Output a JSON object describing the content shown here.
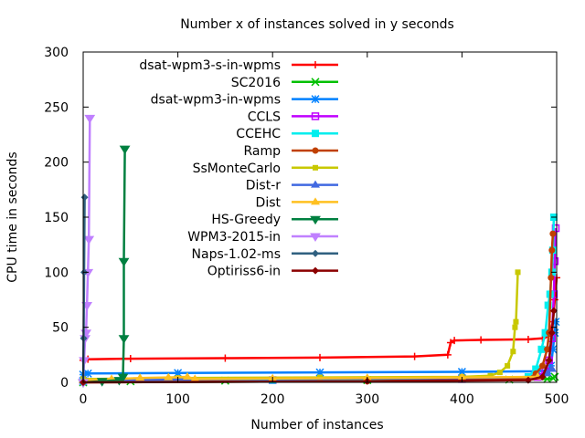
{
  "chart_data": {
    "type": "line",
    "title": "Number x of instances solved in y seconds",
    "xlabel": "Number of instances",
    "ylabel": "CPU time in seconds",
    "xlim": [
      0,
      500
    ],
    "ylim": [
      0,
      300
    ],
    "xticks": [
      "0",
      "100",
      "200",
      "300",
      "400",
      "500"
    ],
    "yticks": [
      "0",
      "50",
      "100",
      "150",
      "200",
      "250",
      "300"
    ],
    "xtick_values": [
      0,
      100,
      200,
      300,
      400,
      500
    ],
    "ytick_values": [
      0,
      50,
      100,
      150,
      200,
      250,
      300
    ],
    "grid": false,
    "legend_position": "top-left",
    "series": [
      {
        "name": "dsat-wpm3-s-in-wpms",
        "color": "#ff0000",
        "marker": "plus",
        "points": [
          [
            0,
            20
          ],
          [
            5,
            21
          ],
          [
            50,
            21.5
          ],
          [
            150,
            22
          ],
          [
            250,
            22.5
          ],
          [
            350,
            23.5
          ],
          [
            385,
            25
          ],
          [
            388,
            36
          ],
          [
            392,
            38
          ],
          [
            420,
            38.5
          ],
          [
            470,
            39
          ],
          [
            485,
            40
          ],
          [
            492,
            42
          ],
          [
            496,
            55
          ],
          [
            498,
            75
          ],
          [
            500,
            95
          ]
        ]
      },
      {
        "name": "SC2016",
        "color": "#00c000",
        "marker": "cross",
        "points": [
          [
            0,
            0
          ],
          [
            50,
            1
          ],
          [
            150,
            1.5
          ],
          [
            300,
            2
          ],
          [
            450,
            2.5
          ],
          [
            490,
            3
          ],
          [
            496,
            4
          ],
          [
            498,
            5
          ]
        ]
      },
      {
        "name": "dsat-wpm3-in-wpms",
        "color": "#0080ff",
        "marker": "star",
        "points": [
          [
            0,
            7
          ],
          [
            5,
            8
          ],
          [
            100,
            8.5
          ],
          [
            250,
            9
          ],
          [
            400,
            9.5
          ],
          [
            480,
            10
          ],
          [
            490,
            11
          ],
          [
            494,
            15
          ],
          [
            496,
            30
          ],
          [
            498,
            45
          ],
          [
            499,
            55
          ]
        ]
      },
      {
        "name": "CCLS",
        "color": "#c000ff",
        "marker": "box",
        "points": [
          [
            0,
            1
          ],
          [
            200,
            2
          ],
          [
            400,
            3
          ],
          [
            480,
            5
          ],
          [
            488,
            10
          ],
          [
            492,
            20
          ],
          [
            495,
            40
          ],
          [
            497,
            80
          ],
          [
            498,
            110
          ],
          [
            499,
            140
          ]
        ]
      },
      {
        "name": "CCEHC",
        "color": "#00eeee",
        "marker": "filled-box",
        "points": [
          [
            0,
            1
          ],
          [
            200,
            2
          ],
          [
            400,
            3
          ],
          [
            470,
            5
          ],
          [
            478,
            12
          ],
          [
            484,
            30
          ],
          [
            488,
            45
          ],
          [
            491,
            70
          ],
          [
            493,
            80
          ],
          [
            495,
            100
          ],
          [
            496,
            120
          ],
          [
            497,
            150
          ]
        ]
      },
      {
        "name": "Ramp",
        "color": "#c04000",
        "marker": "filled-circle",
        "points": [
          [
            0,
            0
          ],
          [
            300,
            1
          ],
          [
            470,
            3
          ],
          [
            478,
            8
          ],
          [
            485,
            15
          ],
          [
            490,
            30
          ],
          [
            492,
            45
          ],
          [
            494,
            95
          ],
          [
            495,
            120
          ],
          [
            496,
            135
          ]
        ]
      },
      {
        "name": "SsMonteCarlo",
        "color": "#c8c800",
        "marker": "filled-box-small",
        "points": [
          [
            0,
            3
          ],
          [
            100,
            4
          ],
          [
            250,
            4.5
          ],
          [
            400,
            5
          ],
          [
            430,
            6
          ],
          [
            440,
            9
          ],
          [
            448,
            15
          ],
          [
            454,
            28
          ],
          [
            456,
            50
          ],
          [
            457,
            55
          ],
          [
            459,
            100
          ]
        ]
      },
      {
        "name": "Dist-r",
        "color": "#4169e1",
        "marker": "filled-triangle",
        "points": [
          [
            0,
            2
          ],
          [
            200,
            3
          ],
          [
            400,
            4
          ],
          [
            480,
            5
          ],
          [
            490,
            8
          ],
          [
            495,
            12
          ]
        ]
      },
      {
        "name": "Dist",
        "color": "#ffc020",
        "marker": "filled-triangle",
        "points": [
          [
            0,
            2
          ],
          [
            30,
            3
          ],
          [
            60,
            4
          ],
          [
            90,
            4.5
          ],
          [
            110,
            5
          ],
          [
            118,
            3
          ],
          [
            200,
            3.5
          ],
          [
            300,
            4
          ],
          [
            400,
            4.5
          ],
          [
            480,
            5
          ]
        ]
      },
      {
        "name": "HS-Greedy",
        "color": "#008040",
        "marker": "filled-triangle-down",
        "points": [
          [
            0,
            0
          ],
          [
            20,
            1
          ],
          [
            38,
            2
          ],
          [
            42,
            5
          ],
          [
            43,
            40
          ],
          [
            43,
            110
          ],
          [
            44,
            212
          ]
        ]
      },
      {
        "name": "WPM3-2015-in",
        "color": "#c080ff",
        "marker": "filled-triangle-down",
        "points": [
          [
            0,
            0
          ],
          [
            1,
            20
          ],
          [
            2,
            40
          ],
          [
            3,
            45
          ],
          [
            4,
            70
          ],
          [
            5,
            100
          ],
          [
            6,
            130
          ],
          [
            7,
            240
          ]
        ]
      },
      {
        "name": "Naps-1.02-ms",
        "color": "#306080",
        "marker": "filled-diamond",
        "points": [
          [
            0,
            0
          ],
          [
            0.5,
            40
          ],
          [
            1,
            100
          ],
          [
            1.5,
            168
          ]
        ]
      },
      {
        "name": "Optiriss6-in",
        "color": "#8b0000",
        "marker": "filled-diamond",
        "points": [
          [
            0,
            0
          ],
          [
            300,
            1
          ],
          [
            470,
            2
          ],
          [
            485,
            5
          ],
          [
            492,
            20
          ],
          [
            495,
            45
          ],
          [
            497,
            65
          ]
        ]
      }
    ]
  }
}
